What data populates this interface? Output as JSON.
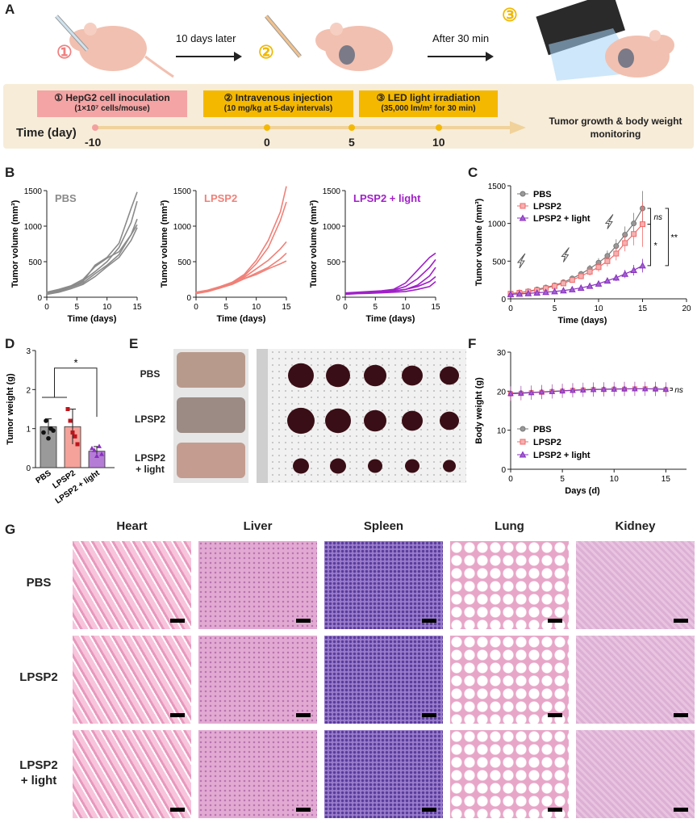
{
  "panel_labels": {
    "A": "A",
    "B": "B",
    "C": "C",
    "D": "D",
    "E": "E",
    "F": "F",
    "G": "G"
  },
  "panelA": {
    "step1_num": "①",
    "step2_num": "②",
    "step3_num": "③",
    "arrow1_label": "10 days later",
    "arrow2_label": "After 30 min",
    "box1_title": "① HepG2 cell inoculation",
    "box1_sub": "(1×10⁷ cells/mouse)",
    "box2_title": "② Intravenous injection",
    "box2_sub": "(10 mg/kg  at 5-day intervals)",
    "box3_title": "③ LED light irradiation",
    "box3_sub": "(35,000 lm/m² for 30 min)",
    "time_label": "Time (day)",
    "ticks": [
      "-10",
      "0",
      "5",
      "10"
    ],
    "end_label_1": "Tumor growth & body weight",
    "end_label_2": "monitoring",
    "colors": {
      "box1": "#f4a8a8",
      "box23": "#f5b800",
      "timeline": "#f0d6a0",
      "bg": "#f6ecd9"
    }
  },
  "panelB": {
    "ylabel": "Tumor volume (mm³)",
    "xlabel": "Time (days)",
    "titles": [
      "PBS",
      "LPSP2",
      "LPSP2 + light"
    ],
    "colors": [
      "#8a8a8a",
      "#f08078",
      "#a020c8"
    ]
  },
  "panelC": {
    "ylabel": "Tumor volume (mm³)",
    "xlabel": "Time (days)",
    "legend": [
      "PBS",
      "LPSP2",
      "LPSP2 + light"
    ],
    "sig": [
      "ns",
      "*",
      "**"
    ]
  },
  "panelD": {
    "ylabel": "Tumor weight (g)",
    "categories": [
      "PBS",
      "LPSP2",
      "LPSP2 + light"
    ],
    "sig": "*"
  },
  "panelE": {
    "rows": [
      "PBS",
      "LPSP2",
      "LPSP2\n+ light"
    ]
  },
  "panelF": {
    "ylabel": "Body weight (g)",
    "xlabel": "Days (d)",
    "legend": [
      "PBS",
      "LPSP2",
      "LPSP2 + light"
    ],
    "sig": "ns"
  },
  "panelG": {
    "organs": [
      "Heart",
      "Liver",
      "Spleen",
      "Lung",
      "Kidney"
    ],
    "rows": [
      "PBS",
      "LPSP2",
      "LPSP2\n+ light"
    ],
    "row_line1": [
      "PBS",
      "LPSP2",
      "LPSP2"
    ],
    "row_line2": [
      "",
      "",
      "+ light"
    ],
    "tile_colors": {
      "Heart": "#f3b4cf",
      "Liver": "#dba0cc",
      "Spleen": "#8e72c0",
      "Lung": "#f7e4ee",
      "Kidney": "#deb2d6"
    }
  },
  "chart_data": [
    {
      "type": "line",
      "panel": "B-PBS",
      "title": "PBS",
      "xlabel": "Time (days)",
      "ylabel": "Tumor volume (mm³)",
      "xlim": [
        0,
        15
      ],
      "ylim": [
        0,
        1500
      ],
      "x": [
        0,
        2,
        4,
        6,
        8,
        10,
        12,
        14,
        15
      ],
      "series": [
        {
          "values": [
            60,
            100,
            150,
            220,
            450,
            560,
            760,
            1250,
            1480
          ]
        },
        {
          "values": [
            50,
            80,
            140,
            200,
            330,
            450,
            600,
            880,
            1100
          ]
        },
        {
          "values": [
            40,
            70,
            120,
            180,
            290,
            430,
            560,
            800,
            980
          ]
        },
        {
          "values": [
            70,
            110,
            160,
            250,
            430,
            550,
            640,
            880,
            1020
          ]
        },
        {
          "values": [
            55,
            90,
            140,
            230,
            360,
            500,
            700,
            1050,
            1350
          ]
        }
      ]
    },
    {
      "type": "line",
      "panel": "B-LPSP2",
      "title": "LPSP2",
      "xlabel": "Time (days)",
      "ylabel": "Tumor volume (mm³)",
      "xlim": [
        0,
        15
      ],
      "ylim": [
        0,
        1500
      ],
      "x": [
        0,
        2,
        4,
        6,
        8,
        10,
        12,
        14,
        15
      ],
      "series": [
        {
          "values": [
            60,
            90,
            140,
            210,
            320,
            520,
            800,
            1200,
            1560
          ]
        },
        {
          "values": [
            50,
            80,
            130,
            190,
            300,
            470,
            700,
            1080,
            1340
          ]
        },
        {
          "values": [
            70,
            100,
            150,
            210,
            280,
            400,
            520,
            680,
            780
          ]
        },
        {
          "values": [
            55,
            90,
            130,
            180,
            260,
            340,
            420,
            540,
            620
          ]
        },
        {
          "values": [
            65,
            95,
            140,
            190,
            260,
            320,
            400,
            470,
            510
          ]
        }
      ]
    },
    {
      "type": "line",
      "panel": "B-LPSP2+light",
      "title": "LPSP2 + light",
      "xlabel": "Time (days)",
      "ylabel": "Tumor volume (mm³)",
      "xlim": [
        0,
        15
      ],
      "ylim": [
        0,
        1500
      ],
      "x": [
        0,
        2,
        4,
        6,
        8,
        10,
        12,
        14,
        15
      ],
      "series": [
        {
          "values": [
            60,
            70,
            80,
            90,
            110,
            200,
            380,
            560,
            620
          ]
        },
        {
          "values": [
            50,
            60,
            70,
            85,
            100,
            150,
            260,
            420,
            530
          ]
        },
        {
          "values": [
            55,
            62,
            70,
            80,
            90,
            110,
            170,
            300,
            420
          ]
        },
        {
          "values": [
            45,
            55,
            65,
            75,
            85,
            110,
            150,
            220,
            290
          ]
        },
        {
          "values": [
            40,
            50,
            55,
            62,
            70,
            80,
            110,
            150,
            220
          ]
        }
      ]
    },
    {
      "type": "line",
      "panel": "C",
      "xlabel": "Time (days)",
      "ylabel": "Tumor volume (mm³)",
      "xlim": [
        0,
        20
      ],
      "ylim": [
        0,
        1500
      ],
      "x": [
        0,
        1,
        2,
        3,
        4,
        5,
        6,
        7,
        8,
        9,
        10,
        11,
        12,
        13,
        14,
        15
      ],
      "series": [
        {
          "name": "PBS",
          "values": [
            70,
            85,
            100,
            125,
            150,
            180,
            220,
            270,
            330,
            400,
            480,
            570,
            700,
            850,
            1000,
            1200
          ],
          "err": [
            10,
            12,
            14,
            16,
            20,
            25,
            30,
            35,
            40,
            50,
            60,
            70,
            90,
            110,
            140,
            230
          ]
        },
        {
          "name": "LPSP2",
          "values": [
            68,
            80,
            95,
            115,
            140,
            170,
            205,
            250,
            300,
            360,
            420,
            500,
            600,
            740,
            860,
            990
          ],
          "err": [
            10,
            12,
            14,
            16,
            20,
            25,
            30,
            35,
            40,
            50,
            60,
            70,
            90,
            110,
            150,
            300
          ]
        },
        {
          "name": "LPSP2 + light",
          "values": [
            60,
            65,
            72,
            80,
            88,
            98,
            110,
            125,
            145,
            170,
            200,
            240,
            280,
            330,
            380,
            440
          ],
          "err": [
            8,
            8,
            9,
            10,
            10,
            12,
            14,
            16,
            20,
            24,
            30,
            36,
            44,
            55,
            70,
            90
          ]
        }
      ]
    },
    {
      "type": "bar",
      "panel": "D",
      "ylabel": "Tumor weight (g)",
      "ylim": [
        0,
        3
      ],
      "categories": [
        "PBS",
        "LPSP2",
        "LPSP2 + light"
      ],
      "values": [
        1.05,
        1.05,
        0.42
      ],
      "err": [
        0.2,
        0.45,
        0.12
      ],
      "points": [
        [
          0.9,
          1.2,
          0.75,
          1.0,
          0.95
        ],
        [
          1.5,
          1.2,
          0.9,
          0.8,
          0.6
        ],
        [
          0.5,
          0.45,
          0.3,
          0.55,
          0.35
        ]
      ]
    },
    {
      "type": "line",
      "panel": "F",
      "xlabel": "Days (d)",
      "ylabel": "Body weight (g)",
      "xlim": [
        0,
        17
      ],
      "ylim": [
        0,
        30
      ],
      "x": [
        0,
        1,
        2,
        3,
        4,
        5,
        6,
        7,
        8,
        9,
        10,
        11,
        12,
        13,
        14,
        15
      ],
      "series": [
        {
          "name": "PBS",
          "values": [
            19.5,
            19.6,
            19.7,
            19.8,
            20.0,
            20.1,
            20.3,
            20.4,
            20.5,
            20.5,
            20.6,
            20.6,
            20.6,
            20.6,
            20.6,
            20.5
          ]
        },
        {
          "name": "LPSP2",
          "values": [
            19.3,
            19.4,
            19.6,
            19.7,
            19.9,
            20.0,
            20.2,
            20.3,
            20.4,
            20.4,
            20.5,
            20.5,
            20.6,
            20.6,
            20.5,
            20.4
          ]
        },
        {
          "name": "LPSP2 + light",
          "values": [
            19.4,
            19.5,
            19.6,
            19.8,
            19.9,
            20.1,
            20.2,
            20.3,
            20.4,
            20.5,
            20.5,
            20.6,
            20.6,
            20.6,
            20.6,
            20.5
          ]
        }
      ]
    }
  ]
}
